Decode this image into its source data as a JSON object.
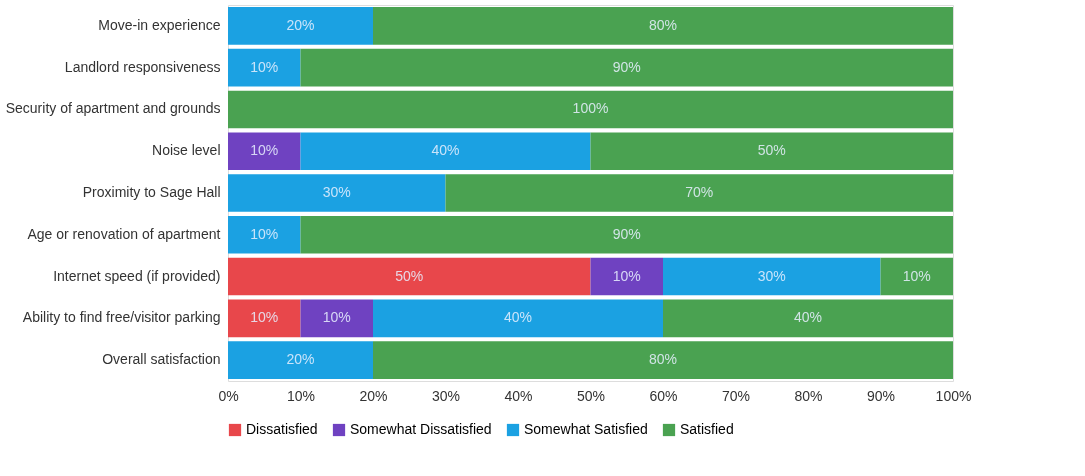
{
  "chart_data": {
    "type": "bar",
    "orientation": "horizontal",
    "stacked": true,
    "categories": [
      "Move-in experience",
      "Landlord responsiveness",
      "Security of apartment and grounds",
      "Noise level",
      "Proximity to Sage Hall",
      "Age or renovation of apartment",
      "Internet speed (if provided)",
      "Ability to find free/visitor parking",
      "Overall satisfaction"
    ],
    "series": [
      {
        "name": "Dissatisfied",
        "color": "#e8474b",
        "values": [
          0,
          0,
          0,
          0,
          0,
          0,
          50,
          10,
          0
        ],
        "value_labels": [
          null,
          null,
          null,
          null,
          null,
          null,
          "50%",
          "10%",
          null
        ]
      },
      {
        "name": "Somewhat Dissatisfied",
        "color": "#6f42c1",
        "values": [
          0,
          0,
          0,
          10,
          0,
          0,
          10,
          10,
          0
        ],
        "value_labels": [
          null,
          null,
          null,
          "10%",
          null,
          null,
          "10%",
          "10%",
          null
        ]
      },
      {
        "name": "Somewhat Satisfied",
        "color": "#1ba1e2",
        "values": [
          20,
          10,
          0,
          40,
          30,
          10,
          30,
          40,
          20
        ],
        "value_labels": [
          "20%",
          "10%",
          null,
          "40%",
          "30%",
          "10%",
          "30%",
          "40%",
          "20%"
        ]
      },
      {
        "name": "Satisfied",
        "color": "#4aa251",
        "values": [
          80,
          90,
          100,
          50,
          70,
          90,
          10,
          40,
          80
        ],
        "value_labels": [
          "80%",
          "90%",
          "100%",
          "50%",
          "70%",
          "90%",
          "10%",
          "40%",
          "80%"
        ]
      }
    ],
    "xlim": [
      0,
      100
    ],
    "xticks": [
      {
        "value": 0,
        "label": "0%"
      },
      {
        "value": 10,
        "label": "10%"
      },
      {
        "value": 20,
        "label": "20%"
      },
      {
        "value": 30,
        "label": "30%"
      },
      {
        "value": 40,
        "label": "40%"
      },
      {
        "value": 50,
        "label": "50%"
      },
      {
        "value": 60,
        "label": "60%"
      },
      {
        "value": 70,
        "label": "70%"
      },
      {
        "value": 80,
        "label": "80%"
      },
      {
        "value": 90,
        "label": "90%"
      },
      {
        "value": 100,
        "label": "100%"
      }
    ],
    "legend": "bottom"
  }
}
